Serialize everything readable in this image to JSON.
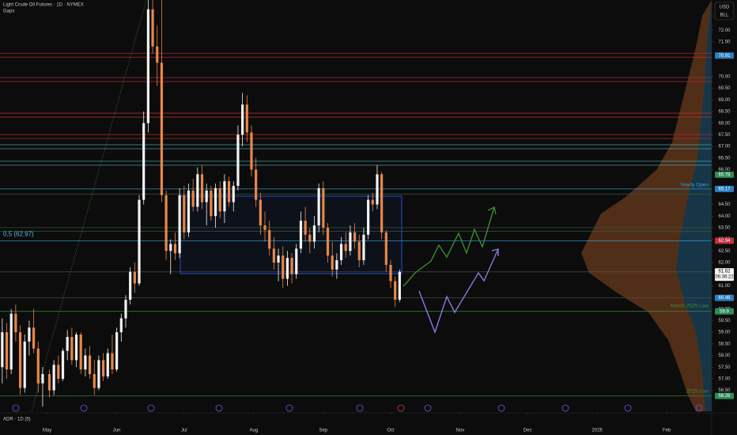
{
  "chart_data": {
    "type": "candlestick",
    "title": "Light Crude Oil Futures · 1D · NYMEX",
    "subtitle": "Gaps",
    "currency": "USD",
    "unit": "BLL",
    "indicator": "ADR · 1D (5)",
    "up_color": "#f2f2f2",
    "down_color": "#e8874a",
    "x": [
      1,
      3,
      5,
      7,
      9,
      11,
      13,
      15,
      17,
      19,
      22,
      24,
      26,
      28,
      30,
      32,
      34,
      36,
      38,
      40,
      42,
      44,
      46,
      48,
      50,
      52,
      54,
      56,
      58,
      60,
      62,
      64,
      66,
      68,
      70,
      72,
      74,
      76,
      78,
      80,
      82,
      84,
      86,
      88,
      90,
      92,
      94,
      96,
      98,
      100,
      102,
      104,
      106,
      108,
      110,
      112,
      114,
      116,
      118,
      120,
      122,
      124,
      126,
      128,
      130,
      132,
      134,
      136,
      138,
      140,
      142,
      144,
      146,
      148,
      150,
      152,
      154,
      156,
      158,
      160,
      162,
      164,
      166,
      168,
      170,
      172,
      174,
      176,
      178
    ],
    "open": [
      57.5,
      59.0,
      57.4,
      59.8,
      59.0,
      56.6,
      58.6,
      59.2,
      58.3,
      56.8,
      57.2,
      56.5,
      57.6,
      57.0,
      58.2,
      58.8,
      57.8,
      58.9,
      57.4,
      58.0,
      57.2,
      56.6,
      57.8,
      57.1,
      58.1,
      57.4,
      59.0,
      59.6,
      60.4,
      61.6,
      61.1,
      64.7,
      68.0,
      72.9,
      71.3,
      70.6,
      64.9,
      62.5,
      62.8,
      62.4,
      64.9,
      63.3,
      65.1,
      64.4,
      65.8,
      64.6,
      65.1,
      64.0,
      65.2,
      64.2,
      65.5,
      64.6,
      65.3,
      67.5,
      68.8,
      67.6,
      66.0,
      64.7,
      63.6,
      63.4,
      62.6,
      62.0,
      62.3,
      61.3,
      62.2,
      61.5,
      62.6,
      63.8,
      63.2,
      62.9,
      63.6,
      65.2,
      63.5,
      62.3,
      61.7,
      62.1,
      62.8,
      62.5,
      63.3,
      62.9,
      62.1,
      63.2,
      64.7,
      64.5,
      65.8,
      63.3,
      61.9,
      61.2,
      60.4
    ],
    "high": [
      59.6,
      59.4,
      60.0,
      60.2,
      59.3,
      58.9,
      59.5,
      60.0,
      58.6,
      57.5,
      57.4,
      57.8,
      58.0,
      58.3,
      59.1,
      59.2,
      59.0,
      59.0,
      58.3,
      58.4,
      57.8,
      58.0,
      58.1,
      58.3,
      58.9,
      59.2,
      59.8,
      60.6,
      61.8,
      62.0,
      64.9,
      68.5,
      73.3,
      73.3,
      72.2,
      73.3,
      65.1,
      63.0,
      63.3,
      65.2,
      65.3,
      65.4,
      65.6,
      66.1,
      66.2,
      65.4,
      65.3,
      65.4,
      65.5,
      65.8,
      65.7,
      65.5,
      67.9,
      69.3,
      69.2,
      67.9,
      66.5,
      65.0,
      64.2,
      63.8,
      63.1,
      62.6,
      62.7,
      62.5,
      62.4,
      62.8,
      64.2,
      64.4,
      63.5,
      64.0,
      65.4,
      65.5,
      63.7,
      62.9,
      62.4,
      63.1,
      63.3,
      63.6,
      63.7,
      63.2,
      63.5,
      64.9,
      65.0,
      66.2,
      65.9,
      63.4,
      62.1,
      61.4,
      61.7
    ],
    "low": [
      56.8,
      57.0,
      57.2,
      58.6,
      56.3,
      56.4,
      58.0,
      58.1,
      56.4,
      55.8,
      56.2,
      56.3,
      56.8,
      56.9,
      57.8,
      57.6,
      57.5,
      57.2,
      57.1,
      57.0,
      56.3,
      56.5,
      56.9,
      57.0,
      57.2,
      57.3,
      58.6,
      59.2,
      60.2,
      60.7,
      61.0,
      64.5,
      67.6,
      71.0,
      69.6,
      64.6,
      62.1,
      61.5,
      62.1,
      62.2,
      63.0,
      63.1,
      64.2,
      64.2,
      64.3,
      63.6,
      63.8,
      63.5,
      63.9,
      63.7,
      64.4,
      64.2,
      65.1,
      67.0,
      67.2,
      65.7,
      64.4,
      63.2,
      62.9,
      62.3,
      61.7,
      61.2,
      60.9,
      61.0,
      61.1,
      61.3,
      62.4,
      62.9,
      62.4,
      62.6,
      63.3,
      63.2,
      62.0,
      61.4,
      61.3,
      61.9,
      62.2,
      62.3,
      62.6,
      61.8,
      61.9,
      63.0,
      64.2,
      64.3,
      63.0,
      61.6,
      60.9,
      60.1,
      60.3
    ],
    "close": [
      59.0,
      57.4,
      59.8,
      59.0,
      56.6,
      58.6,
      59.2,
      58.3,
      56.8,
      57.2,
      56.5,
      57.6,
      57.0,
      58.2,
      58.8,
      57.8,
      58.9,
      57.4,
      58.0,
      57.2,
      56.6,
      57.8,
      57.1,
      58.1,
      57.4,
      59.0,
      59.6,
      60.4,
      61.6,
      61.1,
      64.7,
      68.0,
      72.9,
      71.3,
      70.6,
      64.9,
      62.5,
      62.8,
      62.4,
      64.9,
      63.3,
      65.1,
      64.4,
      65.8,
      64.6,
      65.1,
      64.0,
      65.2,
      64.2,
      65.5,
      64.6,
      65.3,
      67.5,
      68.8,
      67.6,
      66.0,
      64.7,
      63.6,
      63.4,
      62.6,
      62.0,
      62.3,
      61.3,
      62.2,
      61.5,
      62.6,
      63.8,
      63.2,
      62.9,
      63.6,
      65.2,
      63.5,
      62.3,
      61.7,
      62.1,
      62.8,
      62.5,
      63.3,
      62.9,
      62.1,
      63.2,
      64.7,
      64.5,
      65.8,
      63.3,
      61.9,
      61.2,
      60.4,
      61.6
    ],
    "xlim": [
      0,
      317
    ],
    "xticks": [
      {
        "value": 21,
        "label": "May"
      },
      {
        "value": 52,
        "label": "Jun"
      },
      {
        "value": 82,
        "label": "Jul"
      },
      {
        "value": 113,
        "label": "Aug"
      },
      {
        "value": 144,
        "label": "Sep"
      },
      {
        "value": 174,
        "label": "Oct"
      },
      {
        "value": 205,
        "label": "Nov"
      },
      {
        "value": 235,
        "label": "Dec"
      },
      {
        "value": 266,
        "label": "2026"
      },
      {
        "value": 297,
        "label": "Feb"
      }
    ],
    "ylim": [
      55.6,
      73.3
    ],
    "yticks": [
      {
        "value": 56.5,
        "label": "56.50"
      },
      {
        "value": 57,
        "label": "57.00"
      },
      {
        "value": 57.5,
        "label": "57.50"
      },
      {
        "value": 58,
        "label": "58.00"
      },
      {
        "value": 58.5,
        "label": "58.50"
      },
      {
        "value": 59,
        "label": "59.00"
      },
      {
        "value": 59.5,
        "label": "59.50"
      },
      {
        "value": 60,
        "label": "60.00"
      },
      {
        "value": 61,
        "label": "61.00"
      },
      {
        "value": 62,
        "label": "62.00"
      },
      {
        "value": 62.5,
        "label": "62.50"
      },
      {
        "value": 63,
        "label": "63.00"
      },
      {
        "value": 63.5,
        "label": "63.50"
      },
      {
        "value": 64,
        "label": "64.00"
      },
      {
        "value": 64.5,
        "label": "64.50"
      },
      {
        "value": 66,
        "label": "66.00"
      },
      {
        "value": 66.5,
        "label": "66.50"
      },
      {
        "value": 67,
        "label": "67.00"
      },
      {
        "value": 67.5,
        "label": "67.50"
      },
      {
        "value": 68,
        "label": "68.00"
      },
      {
        "value": 68.5,
        "label": "68.50"
      },
      {
        "value": 69,
        "label": "69.00"
      },
      {
        "value": 69.5,
        "label": "69.50"
      },
      {
        "value": 70,
        "label": "70.00"
      },
      {
        "value": 71.5,
        "label": "71.50"
      },
      {
        "value": 72,
        "label": "72.00"
      }
    ],
    "levels": [
      {
        "value": 71.01,
        "color": "#c0303a"
      },
      {
        "value": 70.84,
        "color": "#c0303a"
      },
      {
        "value": 69.96,
        "color": "#c0303a"
      },
      {
        "value": 69.79,
        "color": "#c0303a"
      },
      {
        "value": 68.43,
        "color": "#c0303a"
      },
      {
        "value": 68.26,
        "color": "#c0303a"
      },
      {
        "value": 67.51,
        "color": "#c0303a"
      },
      {
        "value": 67.34,
        "color": "#c0303a"
      },
      {
        "value": 67.07,
        "color": "#4fb3b8"
      },
      {
        "value": 66.9,
        "color": "#4fb3b8"
      },
      {
        "value": 66.36,
        "color": "#4fb3b8"
      },
      {
        "value": 66.19,
        "color": "#4fb3b8"
      },
      {
        "value": 65.17,
        "color": "#2ea8e0"
      },
      {
        "value": 64.95,
        "color": "#3c5a3c"
      },
      {
        "value": 63.5,
        "color": "#3c5a3c"
      },
      {
        "value": 63.35,
        "color": "#3c5a3c"
      },
      {
        "value": 62.94,
        "color": "#2ea8e0"
      },
      {
        "value": 61.6,
        "color": "#555555"
      },
      {
        "value": 60.48,
        "color": "#555555"
      },
      {
        "value": 59.9,
        "color": "#3d8b3d"
      },
      {
        "value": 56.26,
        "color": "#3d8b3d"
      }
    ],
    "price_labels": [
      {
        "value": 70.91,
        "color": "#2a7fc0"
      },
      {
        "value": 65.78,
        "color": "#2e8b57"
      },
      {
        "value": 65.17,
        "color": "#2a7fc0"
      },
      {
        "value": 62.94,
        "color": "#c0303a"
      },
      {
        "value": 61.62,
        "color": "#f2f2f2"
      },
      {
        "value": 60.48,
        "color": "#2a7fc0"
      },
      {
        "value": 59.9,
        "color": "#2e8b57"
      },
      {
        "value": 56.26,
        "color": "#2e8b57"
      }
    ],
    "countdown": "06:36:22",
    "annotations": [
      {
        "text": "0,5 (62.97)",
        "value": 62.97,
        "color": "#5bb5e8"
      },
      {
        "text": "Yearly Open",
        "value": 65.17,
        "color": "#3a9bd0"
      },
      {
        "text": "March 2025 Low",
        "value": 59.9,
        "color": "#3d8b3d"
      },
      {
        "text": "2025 Low",
        "value": 56.26,
        "color": "#3d8b3d"
      }
    ]
  }
}
